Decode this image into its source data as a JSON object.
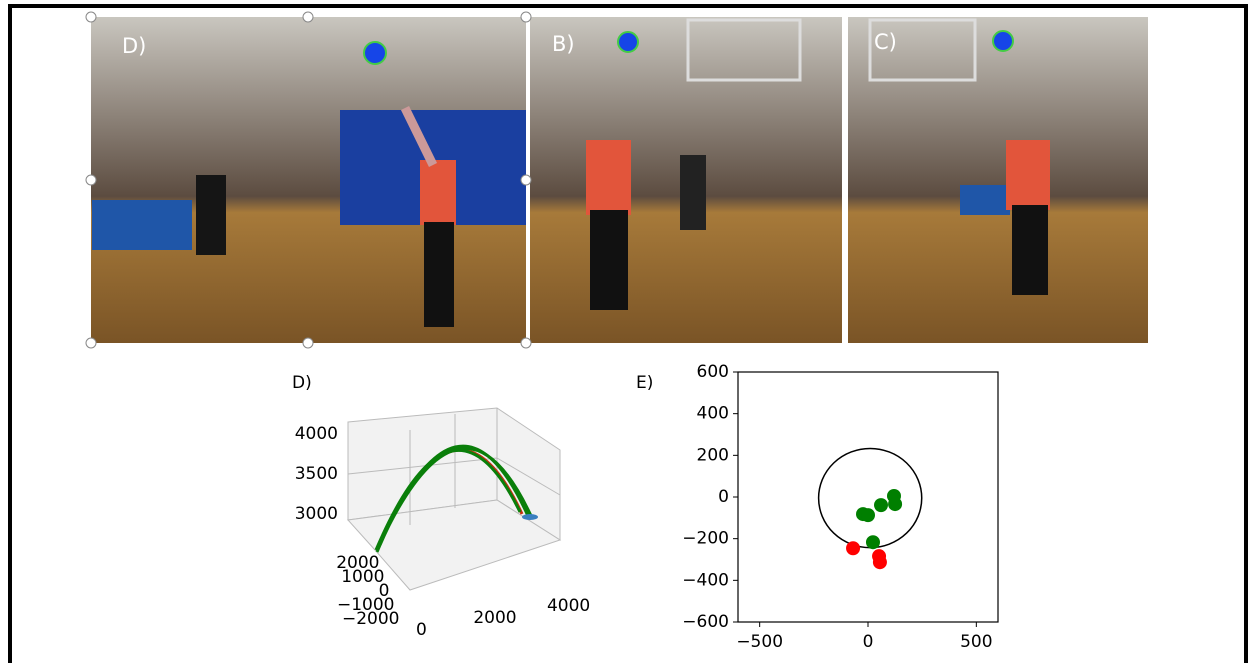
{
  "panels": [
    {
      "label": "D)"
    },
    {
      "label": "B)"
    },
    {
      "label": "C)"
    }
  ],
  "chart_data": [
    {
      "type": "trajectory3d",
      "title": "D)",
      "xlim": [
        -500,
        4500
      ],
      "xticks": [
        0,
        2000,
        4000
      ],
      "ylim": [
        -2500,
        2500
      ],
      "yticks": [
        {
          "value": -2000,
          "label": "−2000"
        },
        {
          "value": -1000,
          "label": "−1000"
        },
        0,
        1000,
        2000
      ],
      "zlim": [
        2850,
        4150
      ],
      "zticks": [
        3000,
        3500,
        4000
      ]
    },
    {
      "type": "scatter",
      "title": "E)",
      "xlim": [
        -600,
        600
      ],
      "xticks": [
        {
          "value": -500,
          "label": "−500"
        },
        0,
        500
      ],
      "ylim": [
        -600,
        600
      ],
      "yticks": [
        {
          "value": -600,
          "label": "−600"
        },
        {
          "value": -400,
          "label": "−400"
        },
        {
          "value": -200,
          "label": "−200"
        },
        0,
        200,
        400,
        600
      ],
      "circle": {
        "center": [
          10,
          -5
        ],
        "radius": 238
      },
      "series": [
        {
          "color": "#007f00",
          "x": [
            -23,
            0,
            60,
            120,
            125,
            23
          ],
          "y": [
            -82,
            -87,
            -39,
            5,
            -34,
            -217
          ]
        },
        {
          "color": "#ff0000",
          "x": [
            -69,
            51,
            55
          ],
          "y": [
            -246,
            -284,
            -313
          ]
        }
      ]
    }
  ]
}
